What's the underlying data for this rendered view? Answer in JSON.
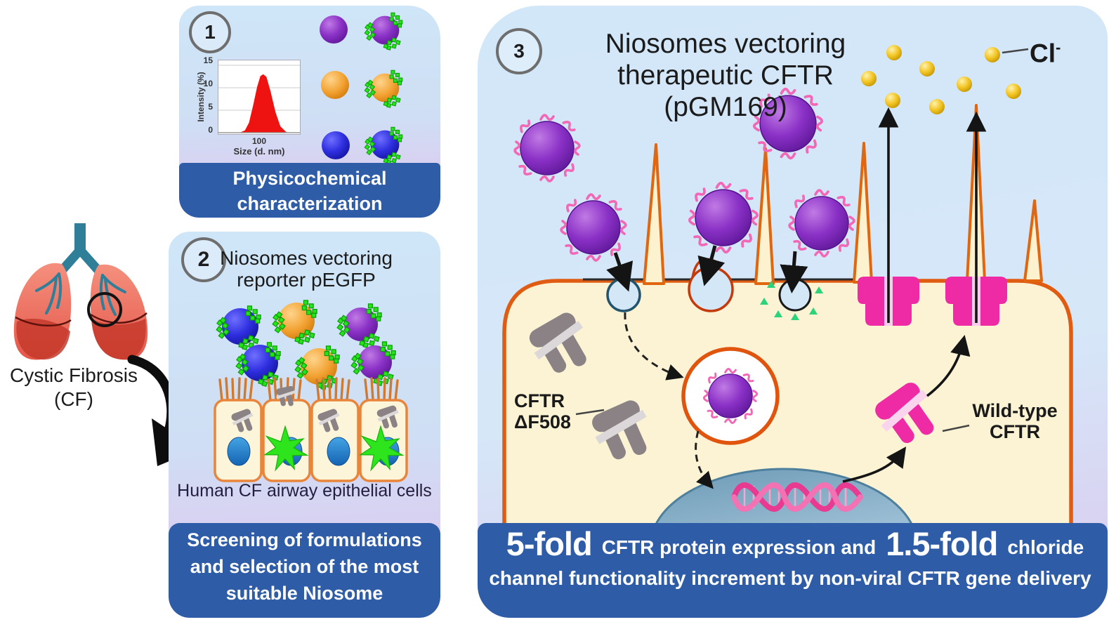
{
  "left": {
    "disease_line1": "Cystic Fibrosis",
    "disease_line2": "(CF)"
  },
  "panel1": {
    "number": "1",
    "banner": "Physicochemical characterization"
  },
  "panel2": {
    "number": "2",
    "title": "Niosomes vectoring reporter pEGFP",
    "caption": "Human CF airway epithelial cells",
    "banner": "Screening of formulations and selection of the most suitable Niosome"
  },
  "panel3": {
    "number": "3",
    "title_line1": "Niosomes vectoring",
    "title_line2": "therapeutic CFTR",
    "title_line3": "(pGM169)",
    "chloride_label": "Cl",
    "chloride_charge": "-",
    "mutant_label_line1": "CFTR",
    "mutant_label_line2": "ΔF508",
    "wildtype_label_line1": "Wild-type",
    "wildtype_label_line2": "CFTR",
    "banner": {
      "fold1": "5-fold",
      "text1": "CFTR protein expression and",
      "fold2": "1.5-fold",
      "text2": "chloride channel functionality increment by non-viral CFTR gene delivery"
    }
  },
  "chart_data": {
    "type": "area",
    "title": "",
    "xlabel": "Size (d. nm)",
    "ylabel": "Intensity (%)",
    "x_ticks": [
      "100"
    ],
    "y_ticks": [
      0,
      5,
      10,
      15
    ],
    "xlim": [
      0,
      200
    ],
    "ylim": [
      0,
      15
    ],
    "grid": true,
    "legend": "none",
    "series": [
      {
        "name": "niosome size distribution",
        "color": "#ee1310",
        "x": [
          52,
          65,
          75,
          85,
          95,
          103,
          110,
          118,
          128,
          140,
          152,
          168
        ],
        "y": [
          0,
          0.5,
          2.2,
          6,
          10.2,
          12.6,
          13,
          12.4,
          9.2,
          4.6,
          1.4,
          0
        ]
      }
    ]
  },
  "colors": {
    "banner_bg": "#2e5ca6",
    "cell_fill": "#fbf3d4",
    "cell_border": "#df5c12",
    "niosome_purple": "#8428c8",
    "niosome_orange": "#f29c2e",
    "niosome_blue": "#2e2ee0",
    "pegfp_green": "#25e41b",
    "dna_pink": "#e73a90",
    "cftr_wildtype_pink": "#ee2ba4",
    "cftr_mutant_gray": "#8a8284",
    "chloride_gold": "#f2c21f"
  }
}
